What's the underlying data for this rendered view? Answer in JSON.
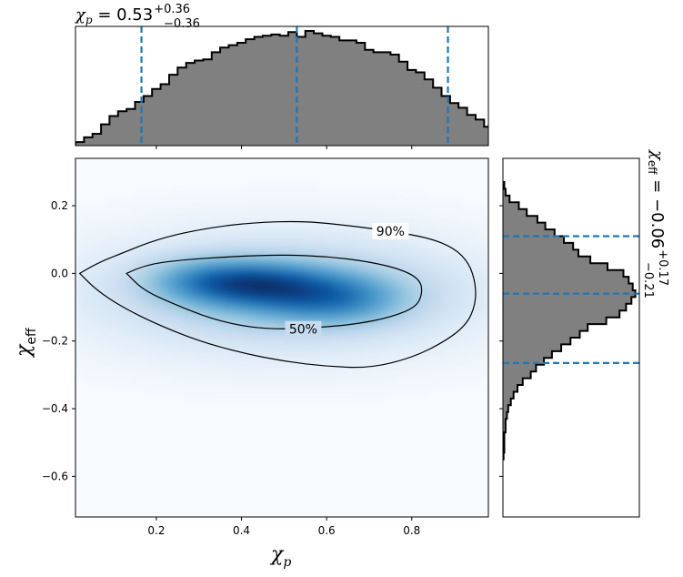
{
  "chart_data": [
    {
      "type": "heatmap",
      "xlabel": "χp",
      "ylabel": "χeff",
      "xlim": [
        0.01,
        0.98
      ],
      "ylim": [
        -0.72,
        0.34
      ],
      "x_ticks": [
        0.2,
        0.4,
        0.6,
        0.8
      ],
      "x_tick_labels": [
        "0.2",
        "0.4",
        "0.6",
        "0.8"
      ],
      "y_ticks": [
        0.2,
        0.0,
        -0.2,
        -0.4,
        -0.6
      ],
      "y_tick_labels": [
        "0.2",
        "0.0",
        "−0.2",
        "−0.4",
        "−0.6"
      ],
      "colormap": "Blues",
      "density_peak": {
        "x": 0.45,
        "y": -0.04
      },
      "contours": [
        {
          "label": "90%",
          "label_at": {
            "x": 0.75,
            "y": 0.125
          },
          "points": [
            [
              0.02,
              0.0
            ],
            [
              0.06,
              0.03
            ],
            [
              0.12,
              0.06
            ],
            [
              0.2,
              0.1
            ],
            [
              0.3,
              0.13
            ],
            [
              0.42,
              0.15
            ],
            [
              0.55,
              0.155
            ],
            [
              0.66,
              0.14
            ],
            [
              0.75,
              0.125
            ],
            [
              0.84,
              0.105
            ],
            [
              0.9,
              0.075
            ],
            [
              0.935,
              0.03
            ],
            [
              0.95,
              -0.03
            ],
            [
              0.95,
              -0.09
            ],
            [
              0.93,
              -0.15
            ],
            [
              0.88,
              -0.2
            ],
            [
              0.8,
              -0.25
            ],
            [
              0.7,
              -0.28
            ],
            [
              0.6,
              -0.275
            ],
            [
              0.5,
              -0.26
            ],
            [
              0.4,
              -0.235
            ],
            [
              0.3,
              -0.2
            ],
            [
              0.2,
              -0.15
            ],
            [
              0.12,
              -0.1
            ],
            [
              0.06,
              -0.05
            ],
            [
              0.02,
              0.0
            ]
          ]
        },
        {
          "label": "50%",
          "label_at": {
            "x": 0.545,
            "y": -0.165
          },
          "points": [
            [
              0.13,
              0.0
            ],
            [
              0.17,
              0.025
            ],
            [
              0.26,
              0.04
            ],
            [
              0.38,
              0.05
            ],
            [
              0.5,
              0.055
            ],
            [
              0.6,
              0.05
            ],
            [
              0.7,
              0.035
            ],
            [
              0.78,
              0.01
            ],
            [
              0.82,
              -0.02
            ],
            [
              0.825,
              -0.06
            ],
            [
              0.81,
              -0.1
            ],
            [
              0.75,
              -0.13
            ],
            [
              0.67,
              -0.15
            ],
            [
              0.58,
              -0.16
            ],
            [
              0.5,
              -0.165
            ],
            [
              0.42,
              -0.16
            ],
            [
              0.33,
              -0.135
            ],
            [
              0.24,
              -0.09
            ],
            [
              0.17,
              -0.05
            ],
            [
              0.13,
              0.0
            ]
          ]
        }
      ]
    },
    {
      "type": "bar",
      "orientation": "vertical",
      "variable": "χp",
      "xlim": [
        0.01,
        0.98
      ],
      "annotation": {
        "prefix": "χp = ",
        "median": "0.53",
        "upper": "+0.36",
        "lower": "−0.36"
      },
      "quantile_lines": [
        0.165,
        0.53,
        0.885
      ],
      "bin_edges": [
        0.01,
        0.03,
        0.05,
        0.07,
        0.09,
        0.11,
        0.13,
        0.15,
        0.17,
        0.19,
        0.21,
        0.23,
        0.25,
        0.27,
        0.29,
        0.31,
        0.33,
        0.35,
        0.37,
        0.39,
        0.41,
        0.43,
        0.45,
        0.47,
        0.49,
        0.51,
        0.53,
        0.55,
        0.57,
        0.59,
        0.61,
        0.63,
        0.65,
        0.67,
        0.69,
        0.71,
        0.73,
        0.75,
        0.77,
        0.79,
        0.81,
        0.83,
        0.85,
        0.87,
        0.89,
        0.91,
        0.93,
        0.95,
        0.97,
        0.99
      ],
      "counts": [
        3,
        7,
        10,
        18,
        25,
        29,
        31,
        37,
        42,
        48,
        52,
        60,
        66,
        70,
        72,
        73,
        79,
        83,
        85,
        87,
        90,
        92,
        93,
        94,
        93,
        96,
        92,
        97,
        95,
        93,
        92,
        89,
        89,
        87,
        81,
        79,
        79,
        77,
        71,
        64,
        62,
        56,
        49,
        42,
        36,
        32,
        26,
        22,
        16
      ]
    },
    {
      "type": "bar",
      "orientation": "horizontal",
      "variable": "χeff",
      "ylim": [
        -0.72,
        0.34
      ],
      "annotation": {
        "prefix": "χeff = ",
        "median": "−0.06",
        "upper": "+0.17",
        "lower": "−0.21"
      },
      "quantile_lines": [
        0.11,
        -0.06,
        -0.265
      ],
      "bin_edges": [
        0.27,
        0.25,
        0.23,
        0.21,
        0.19,
        0.17,
        0.15,
        0.13,
        0.11,
        0.09,
        0.07,
        0.05,
        0.03,
        0.01,
        -0.01,
        -0.03,
        -0.05,
        -0.07,
        -0.09,
        -0.11,
        -0.13,
        -0.15,
        -0.17,
        -0.19,
        -0.21,
        -0.23,
        -0.25,
        -0.27,
        -0.29,
        -0.31,
        -0.33,
        -0.35,
        -0.37,
        -0.39,
        -0.41,
        -0.43,
        -0.45,
        -0.47,
        -0.49,
        -0.51,
        -0.53,
        -0.55
      ],
      "counts": [
        1,
        2,
        5,
        12,
        18,
        26,
        32,
        39,
        46,
        53,
        57,
        66,
        79,
        91,
        95,
        98,
        100,
        97,
        93,
        88,
        78,
        64,
        58,
        51,
        44,
        37,
        31,
        25,
        21,
        15,
        11,
        8,
        6,
        4,
        3,
        2,
        2,
        1,
        1,
        1,
        0.5
      ]
    }
  ],
  "labels": {
    "top_prefix": "χ",
    "top_sub": "p",
    "top_eq": " = 0.53",
    "top_sup": "+0.36",
    "top_subscript": "−0.36",
    "right_prefix": "χ",
    "right_sub": "eff",
    "right_eq": " = −0.06",
    "right_sup": "+0.17",
    "right_subscript": "−0.21",
    "xaxis_main": "χ",
    "xaxis_sub": "p",
    "yaxis_main": "χ",
    "yaxis_sub": "eff"
  }
}
